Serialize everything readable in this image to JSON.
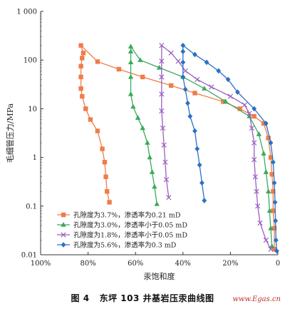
{
  "chart_data": {
    "type": "line",
    "title": "",
    "xlabel": "汞饱和度",
    "ylabel": "毛细管压力/MPa",
    "xlim": [
      100,
      0
    ],
    "ylim": [
      0.01,
      1000
    ],
    "y_scale": "log",
    "x_reversed": true,
    "x_ticks": [
      "100%",
      "80%",
      "60%",
      "40%",
      "20%",
      "0"
    ],
    "y_ticks": [
      "0.01",
      "0.1",
      "1",
      "10",
      "100",
      "1 000"
    ],
    "grid": false,
    "legend_position": "bottom-center",
    "series": [
      {
        "name": "孔隙度为3.7%，渗透率为0.21 mD",
        "color": "#f07c4a",
        "marker": "square",
        "points": [
          [
            71,
            0.12
          ],
          [
            72,
            0.2
          ],
          [
            72.5,
            0.4
          ],
          [
            73,
            0.8
          ],
          [
            74,
            1.5
          ],
          [
            76,
            3.5
          ],
          [
            79,
            6
          ],
          [
            81,
            10
          ],
          [
            82.5,
            18
          ],
          [
            83,
            26
          ],
          [
            83,
            45
          ],
          [
            83,
            75
          ],
          [
            82.5,
            110
          ],
          [
            82,
            140
          ],
          [
            83,
            200
          ],
          [
            76,
            93
          ],
          [
            67,
            65
          ],
          [
            57,
            45
          ],
          [
            45,
            30
          ],
          [
            35,
            21
          ],
          [
            23,
            14
          ],
          [
            16,
            10
          ],
          [
            10,
            7
          ],
          [
            6,
            5
          ],
          [
            4,
            2.5
          ],
          [
            3,
            1
          ],
          [
            2.5,
            0.45
          ],
          [
            2,
            0.2
          ],
          [
            2,
            0.08
          ],
          [
            1.5,
            0.035
          ],
          [
            1.5,
            0.013
          ]
        ]
      },
      {
        "name": "孔隙度为3.0%，渗透率小于0.05 mD",
        "color": "#3aaa5a",
        "marker": "triangle",
        "points": [
          [
            51,
            0.11
          ],
          [
            52,
            0.25
          ],
          [
            53,
            0.5
          ],
          [
            54,
            1
          ],
          [
            55,
            2
          ],
          [
            57,
            4
          ],
          [
            59,
            6.5
          ],
          [
            61,
            11
          ],
          [
            62,
            20
          ],
          [
            62,
            45
          ],
          [
            62,
            90
          ],
          [
            62,
            150
          ],
          [
            62,
            190
          ],
          [
            58,
            100
          ],
          [
            50,
            70
          ],
          [
            40,
            45
          ],
          [
            31,
            26
          ],
          [
            22,
            14
          ],
          [
            12,
            7
          ],
          [
            8,
            3
          ],
          [
            6,
            1.2
          ],
          [
            5,
            0.5
          ],
          [
            4,
            0.2
          ],
          [
            3.5,
            0.08
          ],
          [
            3,
            0.035
          ],
          [
            2.5,
            0.015
          ]
        ]
      },
      {
        "name": "孔隙度为1.8%，渗透率小于0.05 mD",
        "color": "#9b5fc0",
        "marker": "x",
        "points": [
          [
            46,
            0.15
          ],
          [
            47,
            0.35
          ],
          [
            47.5,
            0.8
          ],
          [
            48,
            1.8
          ],
          [
            48.5,
            4
          ],
          [
            49,
            9
          ],
          [
            49,
            20
          ],
          [
            49,
            45
          ],
          [
            49,
            95
          ],
          [
            49,
            200
          ],
          [
            45,
            140
          ],
          [
            42,
            95
          ],
          [
            39,
            60
          ],
          [
            34,
            40
          ],
          [
            28,
            28
          ],
          [
            20,
            18
          ],
          [
            14,
            12
          ],
          [
            12,
            8
          ],
          [
            11,
            4
          ],
          [
            10,
            2
          ],
          [
            10,
            0.9
          ],
          [
            9.5,
            0.4
          ],
          [
            9,
            0.2
          ],
          [
            8.5,
            0.1
          ],
          [
            7.5,
            0.045
          ],
          [
            5,
            0.02
          ],
          [
            3,
            0.013
          ]
        ]
      },
      {
        "name": "孔隙度为5.6%，渗透率为0.3 mD",
        "color": "#2a72c2",
        "marker": "diamond",
        "points": [
          [
            31,
            0.13
          ],
          [
            32,
            0.3
          ],
          [
            33,
            0.7
          ],
          [
            34,
            1.5
          ],
          [
            35,
            3.5
          ],
          [
            37,
            7
          ],
          [
            38,
            13
          ],
          [
            39,
            25
          ],
          [
            40,
            45
          ],
          [
            40,
            90
          ],
          [
            40,
            150
          ],
          [
            40,
            200
          ],
          [
            35,
            130
          ],
          [
            30,
            90
          ],
          [
            25,
            60
          ],
          [
            21,
            40
          ],
          [
            17,
            22
          ],
          [
            10,
            10
          ],
          [
            5,
            5
          ],
          [
            3,
            2
          ],
          [
            2,
            0.8
          ],
          [
            1.5,
            0.3
          ],
          [
            1.2,
            0.12
          ],
          [
            1,
            0.05
          ],
          [
            0.8,
            0.02
          ],
          [
            0.5,
            0.012
          ]
        ]
      }
    ]
  },
  "caption": {
    "figure_number": "图 4",
    "text": "东坪 103 井基岩压汞曲线图"
  },
  "watermark": "www.Egas.cn"
}
